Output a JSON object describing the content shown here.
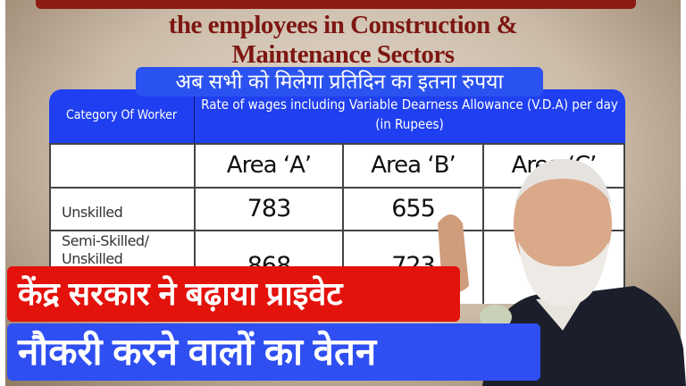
{
  "headline": {
    "line1": "the employees in Construction &",
    "line2": "Maintenance Sectors"
  },
  "subtitle_hindi": "अब सभी को मिलेगा प्रतिदिन का इतना रुपया",
  "table": {
    "col_category": "Category Of Worker",
    "col_rate": "Rate of wages including Variable Dearness Allowance (V.D.A)  per day (in Rupees)",
    "areas": [
      "Area ‘A’",
      "Area ‘B’",
      "Area ‘C’"
    ],
    "rows": [
      {
        "category": "Unskilled",
        "values": [
          "783",
          "655",
          ""
        ]
      },
      {
        "category": "Semi-Skilled/ Unskilled",
        "values": [
          "868",
          "723",
          ""
        ]
      }
    ]
  },
  "banner_red": "केंद्र सरकार ने बढ़ाया प्राइवेट",
  "banner_blue": "नौकरी करने वालों का वेतन",
  "colors": {
    "red_banner": "#e3120b",
    "blue_banner": "#2f4ff2",
    "table_header": "#1f3ff0",
    "title": "#7d1712"
  }
}
